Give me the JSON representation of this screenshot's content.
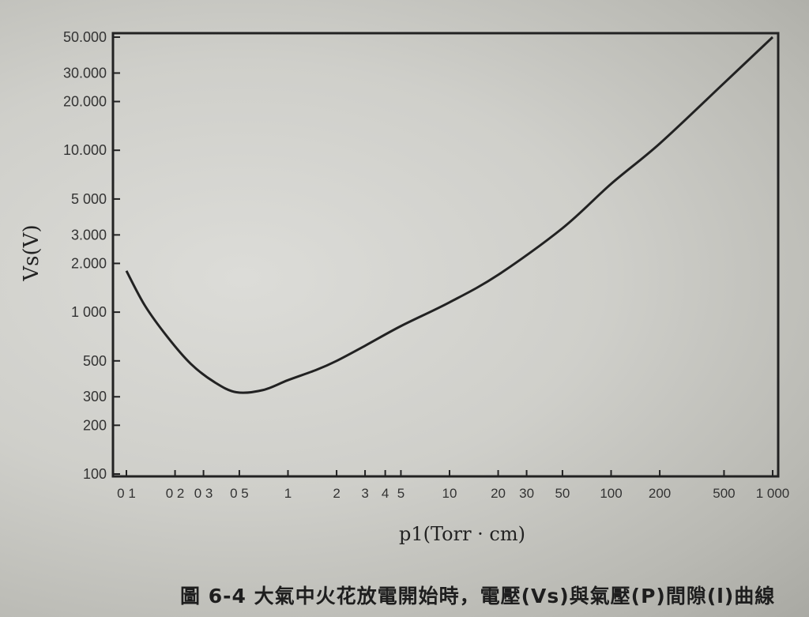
{
  "chart_data": {
    "type": "line",
    "title": "",
    "xlabel": "p1(Torr · cm)",
    "ylabel": "Vs(V)",
    "xscale": "log",
    "yscale": "log",
    "xlim": [
      0.1,
      1000
    ],
    "ylim": [
      100,
      50000
    ],
    "x_ticks": [
      {
        "v": 0.1,
        "label": "0 1"
      },
      {
        "v": 0.2,
        "label": "0 2"
      },
      {
        "v": 0.3,
        "label": "0 3"
      },
      {
        "v": 0.5,
        "label": "0 5"
      },
      {
        "v": 1,
        "label": "1"
      },
      {
        "v": 2,
        "label": "2"
      },
      {
        "v": 3,
        "label": "3"
      },
      {
        "v": 4,
        "label": "4"
      },
      {
        "v": 5,
        "label": "5"
      },
      {
        "v": 10,
        "label": "10"
      },
      {
        "v": 20,
        "label": "20"
      },
      {
        "v": 30,
        "label": "30"
      },
      {
        "v": 50,
        "label": "50"
      },
      {
        "v": 100,
        "label": "100"
      },
      {
        "v": 200,
        "label": "200"
      },
      {
        "v": 500,
        "label": "500"
      },
      {
        "v": 1000,
        "label": "1 000"
      }
    ],
    "y_ticks": [
      {
        "v": 50000,
        "label": "50.000"
      },
      {
        "v": 30000,
        "label": "30.000"
      },
      {
        "v": 20000,
        "label": "20.000"
      },
      {
        "v": 10000,
        "label": "10.000"
      },
      {
        "v": 5000,
        "label": "5 000"
      },
      {
        "v": 3000,
        "label": "3.000"
      },
      {
        "v": 2000,
        "label": "2.000"
      },
      {
        "v": 1000,
        "label": "1 000"
      },
      {
        "v": 500,
        "label": "500"
      },
      {
        "v": 300,
        "label": "300"
      },
      {
        "v": 200,
        "label": "200"
      },
      {
        "v": 100,
        "label": "100"
      }
    ],
    "series": [
      {
        "name": "Vs",
        "x": [
          0.1,
          0.13,
          0.18,
          0.25,
          0.35,
          0.48,
          0.7,
          1,
          1.5,
          2,
          3,
          5,
          10,
          20,
          50,
          100,
          200,
          500,
          1000
        ],
        "y": [
          1800,
          1100,
          700,
          480,
          370,
          320,
          330,
          380,
          440,
          500,
          620,
          820,
          1150,
          1700,
          3300,
          6200,
          11000,
          26000,
          50000
        ]
      }
    ],
    "grid": false
  },
  "caption": "圖 6-4  大氣中火花放電開始時，電壓(Vs)與氣壓(P)間隙(l)曲線"
}
